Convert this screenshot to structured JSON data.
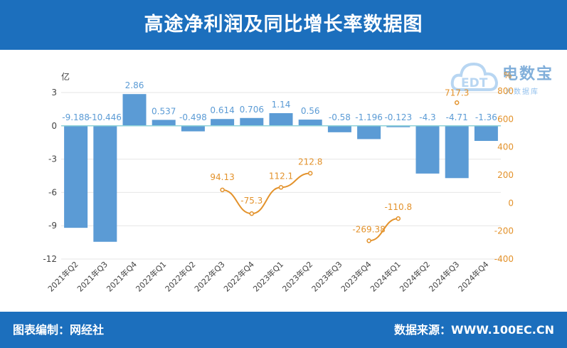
{
  "header": {
    "title": "高途净利润及同比增长率数据图"
  },
  "footer": {
    "left": "图表编制：网经社",
    "right": "数据来源：WWW.100EC.CN"
  },
  "watermark": {
    "name": "电数宝",
    "sub": "大数据库",
    "icon_letters": "EDT"
  },
  "colors": {
    "bar": "#5b9bd5",
    "line": "#e3922b",
    "header": "#1c6fbd",
    "axis_text": "#444444",
    "grid": "#e6e6e6"
  },
  "chart_data": {
    "type": "bar",
    "categories": [
      "2021年Q2",
      "2021年Q3",
      "2021年Q4",
      "2022年Q1",
      "2022年Q2",
      "2022年Q3",
      "2022年Q4",
      "2023年Q1",
      "2023年Q2",
      "2023年Q3",
      "2023年Q4",
      "2024年Q1",
      "2024年Q2",
      "2024年Q3",
      "2024年Q4"
    ],
    "left_axis": {
      "label": "亿",
      "ticks": [
        3,
        0,
        -3,
        -6,
        -9,
        -12
      ],
      "range": [
        -12,
        3
      ]
    },
    "right_axis": {
      "label": "%",
      "ticks": [
        800,
        600,
        400,
        200,
        0,
        -200,
        -400
      ],
      "range": [
        -400,
        800
      ]
    },
    "series": [
      {
        "type": "bar",
        "axis": "left",
        "values": [
          -9.188,
          -10.446,
          2.86,
          0.537,
          -0.498,
          0.614,
          0.706,
          1.14,
          0.56,
          -0.58,
          -1.196,
          -0.123,
          -4.3,
          -4.71,
          -1.36
        ],
        "labels": [
          "-9.188",
          "-10.446",
          "2.86",
          "0.537",
          "-0.498",
          "0.614",
          "0.706",
          "1.14",
          "0.56",
          "-0.58",
          "-1.196",
          "-0.123",
          "-4.3",
          "-4.71",
          "-1.36"
        ]
      },
      {
        "type": "line",
        "axis": "right",
        "values": [
          null,
          null,
          null,
          null,
          null,
          94.13,
          -75.3,
          112.1,
          212.8,
          null,
          -269.38,
          -110.8,
          null,
          717.3,
          null
        ],
        "labels": [
          "",
          "",
          "",
          "",
          "",
          "94.13",
          "-75.3",
          "112.1",
          "212.8",
          "",
          "-269.38",
          "-110.8",
          "",
          "717.3",
          ""
        ]
      }
    ],
    "grid": true
  }
}
